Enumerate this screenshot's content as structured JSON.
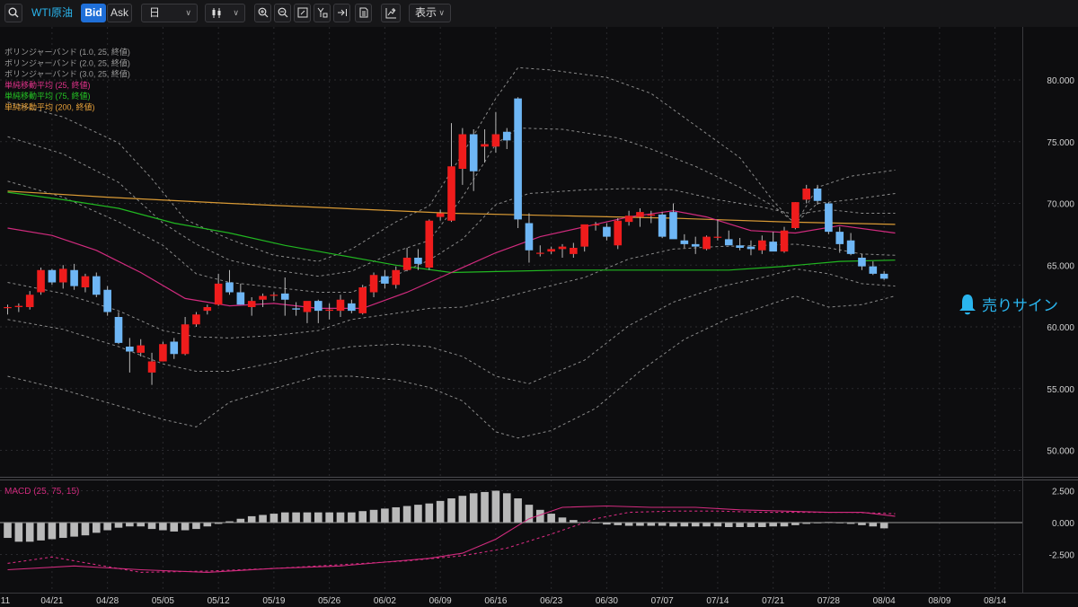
{
  "toolbar": {
    "symbol": "WTI原油",
    "bid_label": "Bid",
    "ask_label": "Ask",
    "timeframe": "日",
    "display_label": "表示"
  },
  "indicators": [
    {
      "label": "ボリンジャーバンド (1.0, 25, 終値)",
      "color": "#9a9a9a"
    },
    {
      "label": "ボリンジャーバンド (2.0, 25, 終値)",
      "color": "#9a9a9a"
    },
    {
      "label": "ボリンジャーバンド (3.0, 25, 終値)",
      "color": "#9a9a9a"
    },
    {
      "label": "単純移動平均 (25, 終値)",
      "color": "#e0338a"
    },
    {
      "label": "単純移動平均 (75, 終値)",
      "color": "#25c425"
    },
    {
      "label": "単純移動平均 (200, 終値)",
      "color": "#e8a23a"
    }
  ],
  "macd_label": "MACD (25, 75, 15)",
  "sell_sign": "売りサイン",
  "colors": {
    "up": "#ef1c1c",
    "down": "#6eb6f5",
    "band": "#8a8a8a",
    "sma25": "#d12b7e",
    "sma75": "#21b821",
    "sma200": "#d99a35",
    "macd_hist": "#b9b9b9",
    "macd_line": "#d12b7e"
  },
  "chart_data": {
    "type": "candlestick",
    "price_axis": {
      "ticks": [
        "80.000",
        "75.000",
        "70.000",
        "65.000",
        "60.000",
        "55.000",
        "50.000"
      ],
      "values": [
        80,
        75,
        70,
        65,
        60,
        55,
        50
      ]
    },
    "macd_axis": {
      "ticks": [
        "2.500",
        "0.000",
        "-2.500"
      ],
      "values": [
        2.5,
        0,
        -2.5
      ]
    },
    "date_ticks": [
      "04/21",
      "04/28",
      "05/05",
      "05/12",
      "05/19",
      "05/26",
      "06/02",
      "06/09",
      "06/16",
      "06/23",
      "06/30",
      "07/07",
      "07/14",
      "07/21",
      "07/28",
      "08/04",
      "08/09",
      "08/14"
    ],
    "first_partial_tick": "11",
    "candles": [
      [
        61.6,
        61.8,
        61.0,
        61.6
      ],
      [
        61.6,
        61.9,
        61.2,
        61.7
      ],
      [
        61.6,
        62.9,
        61.4,
        62.6
      ],
      [
        62.8,
        64.8,
        62.6,
        64.6
      ],
      [
        64.6,
        64.7,
        63.4,
        63.6
      ],
      [
        63.6,
        65.0,
        63.1,
        64.7
      ],
      [
        64.6,
        65.1,
        63.0,
        63.3
      ],
      [
        63.2,
        64.3,
        62.8,
        64.1
      ],
      [
        64.1,
        64.4,
        62.4,
        62.6
      ],
      [
        63.0,
        63.3,
        60.9,
        61.2
      ],
      [
        60.8,
        61.2,
        58.6,
        58.7
      ],
      [
        58.4,
        59.1,
        56.3,
        58.0
      ],
      [
        57.9,
        59.0,
        57.6,
        58.5
      ],
      [
        56.3,
        57.9,
        55.3,
        57.2
      ],
      [
        57.2,
        58.8,
        57.2,
        58.6
      ],
      [
        58.8,
        59.1,
        57.4,
        57.8
      ],
      [
        57.8,
        60.8,
        57.7,
        60.2
      ],
      [
        60.2,
        61.2,
        60.0,
        61.0
      ],
      [
        61.3,
        61.8,
        61.0,
        61.6
      ],
      [
        61.8,
        64.3,
        61.7,
        63.5
      ],
      [
        63.6,
        64.6,
        62.6,
        62.8
      ],
      [
        62.8,
        63.5,
        61.8,
        61.8
      ],
      [
        61.6,
        62.4,
        60.9,
        62.1
      ],
      [
        62.2,
        62.7,
        61.6,
        62.5
      ],
      [
        62.6,
        62.8,
        62.1,
        62.6
      ],
      [
        62.7,
        64.0,
        60.9,
        62.2
      ],
      [
        61.5,
        62.0,
        60.9,
        61.4
      ],
      [
        61.2,
        62.0,
        60.3,
        62.1
      ],
      [
        62.1,
        62.2,
        60.3,
        61.3
      ],
      [
        61.3,
        61.9,
        60.6,
        61.4
      ],
      [
        61.3,
        62.6,
        60.8,
        62.2
      ],
      [
        61.9,
        62.2,
        61.1,
        61.3
      ],
      [
        61.1,
        63.4,
        61.0,
        63.2
      ],
      [
        62.8,
        64.4,
        62.4,
        64.2
      ],
      [
        64.1,
        64.6,
        63.1,
        63.5
      ],
      [
        63.4,
        64.9,
        63.1,
        64.6
      ],
      [
        64.6,
        66.4,
        64.5,
        65.6
      ],
      [
        65.6,
        66.3,
        64.6,
        65.1
      ],
      [
        64.8,
        68.7,
        64.6,
        68.6
      ],
      [
        68.9,
        69.5,
        68.6,
        69.2
      ],
      [
        68.6,
        76.5,
        68.5,
        73.0
      ],
      [
        72.8,
        76.1,
        71.5,
        75.6
      ],
      [
        75.6,
        76.0,
        71.0,
        72.6
      ],
      [
        74.6,
        76.0,
        73.3,
        74.8
      ],
      [
        74.6,
        77.4,
        74.1,
        75.6
      ],
      [
        75.8,
        76.1,
        74.4,
        75.1
      ],
      [
        78.5,
        78.6,
        68.0,
        68.7
      ],
      [
        68.4,
        69.2,
        65.2,
        66.2
      ],
      [
        66.0,
        66.6,
        65.7,
        66.0
      ],
      [
        66.1,
        66.5,
        65.9,
        66.3
      ],
      [
        66.3,
        66.7,
        65.6,
        66.5
      ],
      [
        65.9,
        66.8,
        65.6,
        66.4
      ],
      [
        66.5,
        68.1,
        66.1,
        68.3
      ],
      [
        68.3,
        68.5,
        67.8,
        68.3
      ],
      [
        68.1,
        68.4,
        67.0,
        67.3
      ],
      [
        66.6,
        68.8,
        66.3,
        68.6
      ],
      [
        68.5,
        69.4,
        68.2,
        69.0
      ],
      [
        68.9,
        69.6,
        68.1,
        69.3
      ],
      [
        69.0,
        69.4,
        68.4,
        69.1
      ],
      [
        69.1,
        69.3,
        67.2,
        67.3
      ],
      [
        69.3,
        70.0,
        67.2,
        67.1
      ],
      [
        67.0,
        67.5,
        66.4,
        66.7
      ],
      [
        66.7,
        67.3,
        65.9,
        66.5
      ],
      [
        66.3,
        67.4,
        66.2,
        67.3
      ],
      [
        67.3,
        68.7,
        67.0,
        67.3
      ],
      [
        67.1,
        67.8,
        66.8,
        66.6
      ],
      [
        66.6,
        67.2,
        66.2,
        66.4
      ],
      [
        66.5,
        67.0,
        65.8,
        66.3
      ],
      [
        66.2,
        67.4,
        65.9,
        67.0
      ],
      [
        66.9,
        67.7,
        66.2,
        66.1
      ],
      [
        66.1,
        68.1,
        66.0,
        67.8
      ],
      [
        68.0,
        70.1,
        67.9,
        70.1
      ],
      [
        70.3,
        71.5,
        70.0,
        71.2
      ],
      [
        71.2,
        71.5,
        69.9,
        70.2
      ],
      [
        70.0,
        70.1,
        67.5,
        67.7
      ],
      [
        67.7,
        68.1,
        66.0,
        66.7
      ],
      [
        67.0,
        67.6,
        65.8,
        65.9
      ],
      [
        65.6,
        65.9,
        64.6,
        64.9
      ],
      [
        64.9,
        65.3,
        64.2,
        64.3
      ],
      [
        64.3,
        64.5,
        63.8,
        63.9
      ]
    ],
    "sma200": [
      [
        0,
        71.0
      ],
      [
        9,
        70.5
      ],
      [
        20,
        70.0
      ],
      [
        30,
        69.6
      ],
      [
        40,
        69.2
      ],
      [
        50,
        69.0
      ],
      [
        60,
        68.8
      ],
      [
        70,
        68.5
      ],
      [
        80,
        68.3
      ]
    ],
    "sma75": [
      [
        0,
        70.9
      ],
      [
        5,
        70.3
      ],
      [
        10,
        69.6
      ],
      [
        15,
        68.4
      ],
      [
        20,
        67.6
      ],
      [
        25,
        66.6
      ],
      [
        30,
        65.8
      ],
      [
        35,
        65.0
      ],
      [
        40,
        64.4
      ],
      [
        45,
        64.5
      ],
      [
        50,
        64.6
      ],
      [
        55,
        64.6
      ],
      [
        60,
        64.6
      ],
      [
        65,
        64.6
      ],
      [
        70,
        64.9
      ],
      [
        75,
        65.3
      ],
      [
        80,
        65.4
      ]
    ],
    "sma25": [
      [
        0,
        68.0
      ],
      [
        4,
        67.4
      ],
      [
        8,
        66.2
      ],
      [
        12,
        64.4
      ],
      [
        16,
        62.3
      ],
      [
        20,
        61.7
      ],
      [
        24,
        61.9
      ],
      [
        28,
        61.5
      ],
      [
        32,
        61.5
      ],
      [
        36,
        62.8
      ],
      [
        40,
        64.4
      ],
      [
        44,
        66.0
      ],
      [
        48,
        67.3
      ],
      [
        52,
        68.1
      ],
      [
        56,
        68.9
      ],
      [
        60,
        69.4
      ],
      [
        63,
        68.9
      ],
      [
        67,
        67.8
      ],
      [
        71,
        67.6
      ],
      [
        75,
        68.2
      ],
      [
        80,
        67.6
      ]
    ],
    "bb3_upper": [
      [
        0,
        78.2
      ],
      [
        5,
        77.0
      ],
      [
        10,
        74.9
      ],
      [
        13,
        72.0
      ],
      [
        16,
        68.7
      ],
      [
        20,
        67.1
      ],
      [
        24,
        65.8
      ],
      [
        28,
        65.3
      ],
      [
        31,
        66.3
      ],
      [
        35,
        68.5
      ],
      [
        38,
        69.8
      ],
      [
        41,
        74.0
      ],
      [
        44,
        78.5
      ],
      [
        46,
        81.0
      ],
      [
        49,
        80.8
      ],
      [
        54,
        80.2
      ],
      [
        58,
        78.9
      ],
      [
        62,
        76.3
      ],
      [
        66,
        73.7
      ],
      [
        69,
        70.2
      ],
      [
        71,
        68.3
      ],
      [
        73,
        71.3
      ],
      [
        76,
        72.2
      ],
      [
        80,
        72.7
      ]
    ],
    "bb2_upper": [
      [
        0,
        75.4
      ],
      [
        5,
        74.0
      ],
      [
        10,
        71.7
      ],
      [
        14,
        68.4
      ],
      [
        17,
        66.7
      ],
      [
        20,
        65.4
      ],
      [
        24,
        64.6
      ],
      [
        28,
        64.1
      ],
      [
        31,
        64.5
      ],
      [
        35,
        66.1
      ],
      [
        38,
        67.0
      ],
      [
        41,
        70.5
      ],
      [
        44,
        74.8
      ],
      [
        46,
        76.1
      ],
      [
        50,
        76.0
      ],
      [
        55,
        75.3
      ],
      [
        58,
        74.4
      ],
      [
        62,
        73.0
      ],
      [
        66,
        71.3
      ],
      [
        69,
        69.8
      ],
      [
        71,
        68.4
      ],
      [
        73,
        70.0
      ],
      [
        76,
        70.3
      ],
      [
        80,
        70.8
      ]
    ],
    "bb1_upper": [
      [
        0,
        71.8
      ],
      [
        5,
        70.5
      ],
      [
        10,
        68.5
      ],
      [
        14,
        66.6
      ],
      [
        17,
        64.3
      ],
      [
        20,
        63.6
      ],
      [
        24,
        63.2
      ],
      [
        28,
        62.8
      ],
      [
        31,
        62.8
      ],
      [
        35,
        64.2
      ],
      [
        38,
        65.4
      ],
      [
        41,
        67.1
      ],
      [
        44,
        69.9
      ],
      [
        47,
        70.8
      ],
      [
        52,
        71.1
      ],
      [
        56,
        71.2
      ],
      [
        60,
        71.1
      ],
      [
        64,
        70.3
      ],
      [
        68,
        69.7
      ],
      [
        71,
        69.1
      ],
      [
        74,
        69.5
      ],
      [
        77,
        69.2
      ],
      [
        80,
        69.2
      ]
    ],
    "bb1_lower": [
      [
        0,
        63.6
      ],
      [
        5,
        62.7
      ],
      [
        10,
        61.3
      ],
      [
        14,
        59.7
      ],
      [
        17,
        59.2
      ],
      [
        20,
        59.1
      ],
      [
        24,
        59.3
      ],
      [
        28,
        59.7
      ],
      [
        31,
        60.6
      ],
      [
        35,
        61.1
      ],
      [
        38,
        61.5
      ],
      [
        41,
        61.6
      ],
      [
        44,
        62.2
      ],
      [
        47,
        62.9
      ],
      [
        52,
        64.0
      ],
      [
        56,
        65.5
      ],
      [
        60,
        66.3
      ],
      [
        64,
        66.5
      ],
      [
        68,
        66.6
      ],
      [
        71,
        66.7
      ],
      [
        74,
        66.4
      ],
      [
        77,
        65.9
      ],
      [
        80,
        65.8
      ]
    ],
    "bb2_lower": [
      [
        0,
        60.6
      ],
      [
        5,
        59.8
      ],
      [
        10,
        58.4
      ],
      [
        14,
        57.0
      ],
      [
        17,
        56.4
      ],
      [
        20,
        56.4
      ],
      [
        24,
        57.1
      ],
      [
        28,
        58.0
      ],
      [
        31,
        58.4
      ],
      [
        35,
        58.6
      ],
      [
        38,
        58.4
      ],
      [
        41,
        57.6
      ],
      [
        44,
        56.0
      ],
      [
        47,
        55.4
      ],
      [
        52,
        57.3
      ],
      [
        56,
        60.1
      ],
      [
        60,
        62.0
      ],
      [
        64,
        63.2
      ],
      [
        68,
        64.0
      ],
      [
        71,
        64.7
      ],
      [
        74,
        64.3
      ],
      [
        77,
        63.5
      ],
      [
        80,
        63.3
      ]
    ],
    "bb3_lower": [
      [
        0,
        56.0
      ],
      [
        5,
        54.9
      ],
      [
        10,
        53.6
      ],
      [
        14,
        52.5
      ],
      [
        17,
        51.9
      ],
      [
        20,
        53.9
      ],
      [
        24,
        55.0
      ],
      [
        28,
        56.0
      ],
      [
        31,
        56.0
      ],
      [
        35,
        55.7
      ],
      [
        38,
        55.1
      ],
      [
        41,
        54.0
      ],
      [
        44,
        51.5
      ],
      [
        46,
        51.0
      ],
      [
        49,
        51.6
      ],
      [
        53,
        53.4
      ],
      [
        57,
        56.4
      ],
      [
        61,
        59.0
      ],
      [
        65,
        60.7
      ],
      [
        69,
        61.9
      ],
      [
        71,
        62.5
      ],
      [
        74,
        61.6
      ],
      [
        77,
        61.8
      ],
      [
        80,
        62.5
      ]
    ],
    "macd_hist": [
      -1.2,
      -1.5,
      -1.5,
      -1.4,
      -1.3,
      -1.2,
      -1.1,
      -1.0,
      -0.8,
      -0.6,
      -0.4,
      -0.3,
      -0.3,
      -0.5,
      -0.6,
      -0.7,
      -0.6,
      -0.5,
      -0.3,
      -0.1,
      0.1,
      0.3,
      0.5,
      0.6,
      0.7,
      0.8,
      0.8,
      0.8,
      0.8,
      0.8,
      0.8,
      0.8,
      0.9,
      1.0,
      1.1,
      1.2,
      1.3,
      1.4,
      1.5,
      1.7,
      1.9,
      2.1,
      2.3,
      2.4,
      2.5,
      2.3,
      1.9,
      1.4,
      1.0,
      0.7,
      0.4,
      0.2,
      0.05,
      -0.05,
      -0.15,
      -0.2,
      -0.25,
      -0.25,
      -0.25,
      -0.25,
      -0.3,
      -0.3,
      -0.3,
      -0.3,
      -0.3,
      -0.35,
      -0.35,
      -0.35,
      -0.35,
      -0.3,
      -0.3,
      -0.2,
      -0.1,
      0.0,
      0.05,
      0.0,
      -0.1,
      -0.2,
      -0.3,
      -0.45
    ],
    "macd_line": [
      [
        0,
        -3.7
      ],
      [
        6,
        -3.4
      ],
      [
        12,
        -3.7
      ],
      [
        18,
        -3.9
      ],
      [
        24,
        -3.6
      ],
      [
        30,
        -3.4
      ],
      [
        34,
        -3.1
      ],
      [
        38,
        -2.8
      ],
      [
        41,
        -2.4
      ],
      [
        44,
        -1.3
      ],
      [
        47,
        0.3
      ],
      [
        50,
        1.2
      ],
      [
        54,
        1.3
      ],
      [
        58,
        1.2
      ],
      [
        62,
        1.2
      ],
      [
        66,
        1.0
      ],
      [
        70,
        0.9
      ],
      [
        74,
        0.8
      ],
      [
        77,
        0.8
      ],
      [
        80,
        0.5
      ]
    ],
    "macd_signal": [
      [
        0,
        -3.2
      ],
      [
        4,
        -2.7
      ],
      [
        8,
        -3.3
      ],
      [
        12,
        -3.9
      ],
      [
        18,
        -3.8
      ],
      [
        24,
        -3.6
      ],
      [
        30,
        -3.3
      ],
      [
        36,
        -3.0
      ],
      [
        41,
        -2.6
      ],
      [
        45,
        -2.0
      ],
      [
        49,
        -0.9
      ],
      [
        53,
        0.3
      ],
      [
        56,
        0.8
      ],
      [
        60,
        0.9
      ],
      [
        64,
        0.9
      ],
      [
        68,
        0.8
      ],
      [
        72,
        0.8
      ],
      [
        76,
        0.8
      ],
      [
        80,
        0.7
      ]
    ]
  }
}
